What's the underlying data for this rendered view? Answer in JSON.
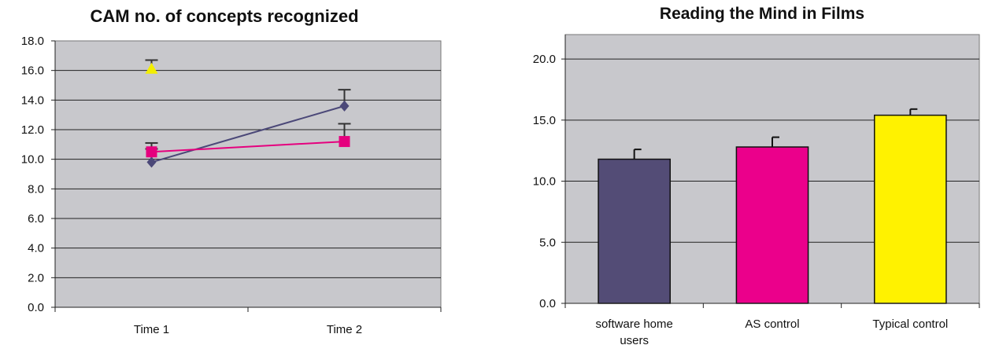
{
  "chart_data": [
    {
      "type": "line",
      "title": "CAM no. of concepts recognized",
      "categories": [
        "Time 1",
        "Time 2"
      ],
      "ylim": [
        0,
        18
      ],
      "yticks": [
        "0.0",
        "2.0",
        "4.0",
        "6.0",
        "8.0",
        "10.0",
        "12.0",
        "14.0",
        "16.0",
        "18.0"
      ],
      "grid": true,
      "legend": "none",
      "series": [
        {
          "color": "#4b4878",
          "marker": "diamond",
          "values": [
            9.8,
            13.6
          ],
          "errors": [
            0.9,
            1.1
          ]
        },
        {
          "color": "#e5007e",
          "marker": "square",
          "values": [
            10.5,
            11.2
          ],
          "errors": [
            0.6,
            1.2
          ]
        },
        {
          "color": "#f2ee00",
          "marker": "triangle",
          "values": [
            16.1,
            null
          ],
          "errors": [
            0.6,
            null
          ]
        }
      ]
    },
    {
      "type": "bar",
      "title": "Reading the Mind in Films",
      "categories": [
        "software home users",
        "AS control",
        "Typical control"
      ],
      "values": [
        11.8,
        12.8,
        15.4
      ],
      "errors": [
        0.8,
        0.8,
        0.5
      ],
      "colors": [
        "#534c76",
        "#eb008b",
        "#fff200"
      ],
      "ylim": [
        0,
        22
      ],
      "yticks": [
        "0.0",
        "5.0",
        "10.0",
        "15.0",
        "20.0"
      ],
      "grid": true,
      "legend": "none"
    }
  ]
}
